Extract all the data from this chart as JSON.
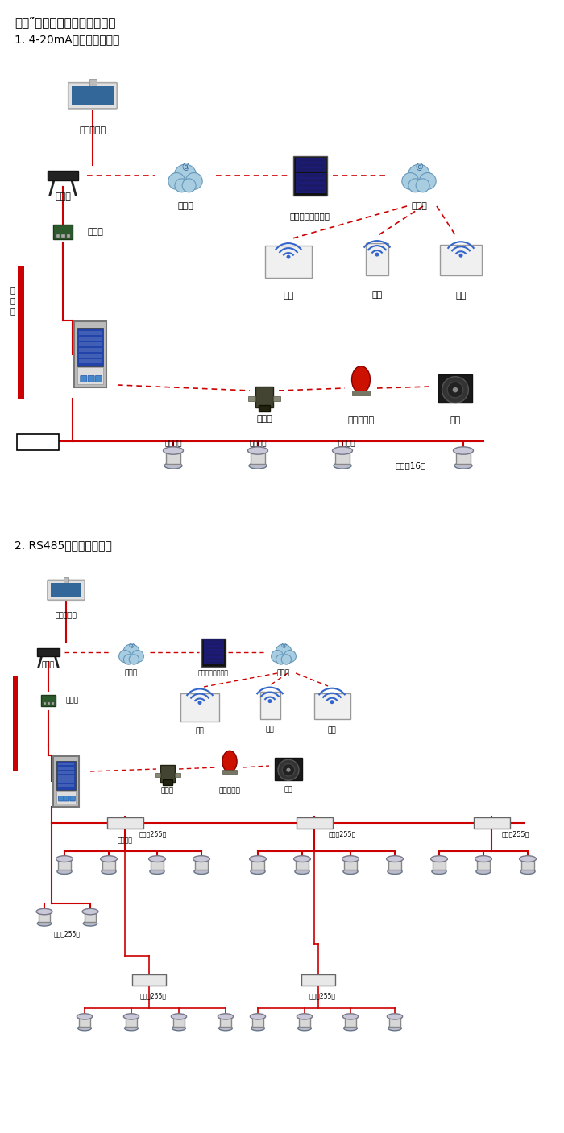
{
  "title1": "大众″系列带显示固定式检测仪",
  "subtitle1": "1. 4-20mA信号连接系统图",
  "subtitle2": "2. RS485信号连接系统图",
  "bg_color": "#ffffff",
  "red": "#cc0000",
  "fig_width": 7.0,
  "fig_height": 14.07
}
